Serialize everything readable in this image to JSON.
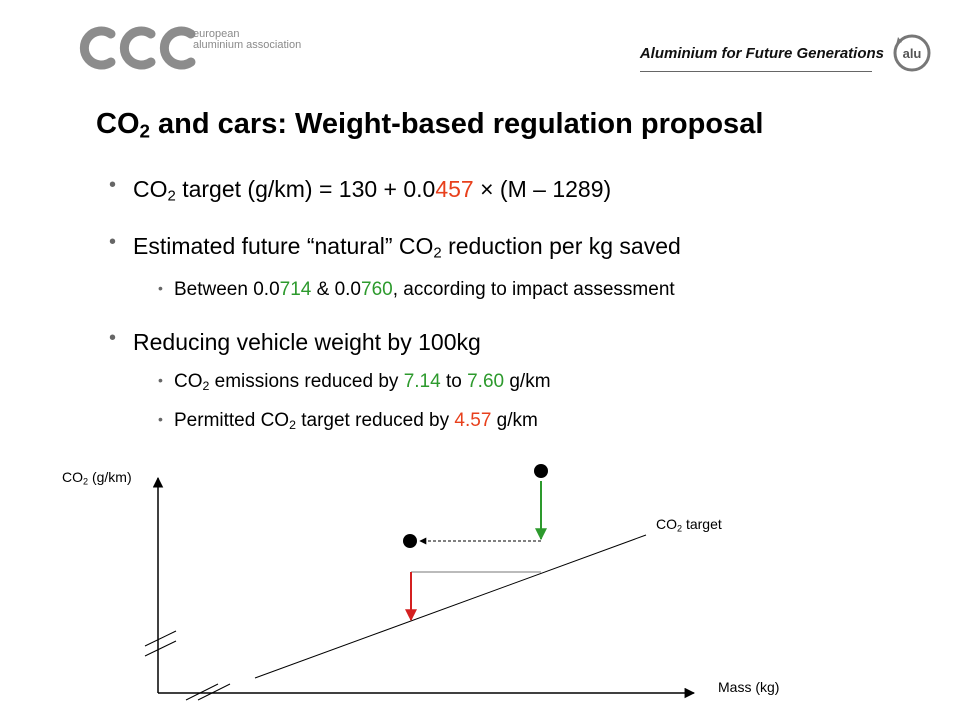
{
  "header": {
    "org_name_line1": "european",
    "org_name_line2": "aluminium association",
    "tagline": "Aluminium for Future Generations",
    "badge_text": "alu"
  },
  "slide": {
    "title_pre": "CO",
    "title_sub": "2",
    "title_post": " and cars: Weight-based regulation proposal",
    "bullet1": {
      "pre": "CO",
      "sub": "2",
      "mid": " target (g/km) = 130 + 0.0",
      "red": "457",
      "post": " × (M – 1289)"
    },
    "bullet2": {
      "pre": "Estimated future “natural” CO",
      "sub": "2",
      "post": " reduction per kg saved"
    },
    "bullet2_sub": {
      "pre": "Between 0.0",
      "g1": "714",
      "mid": " & 0.0",
      "g2": "760",
      "post": ", according to impact assessment"
    },
    "bullet3": {
      "text": "Reducing vehicle weight by 100kg"
    },
    "bullet3_sub1": {
      "pre": "CO",
      "sub": "2",
      "mid": " emissions reduced by ",
      "g1": "7.14",
      "mid2": " to ",
      "g2": "7.60",
      "post": " g/km"
    },
    "bullet3_sub2": {
      "pre": "Permitted CO",
      "sub": "2",
      "mid": " target reduced by ",
      "red": "4.57",
      "post": " g/km"
    }
  },
  "diagram": {
    "y_axis_pre": "CO",
    "y_axis_sub": "2",
    "y_axis_post": " (g/km)",
    "x_axis": "Mass (kg)",
    "line_pre": "CO",
    "line_sub": "2",
    "line_post": " target",
    "colors": {
      "green": "#2d9a2d",
      "red": "#d42020",
      "axis": "#000000"
    }
  }
}
